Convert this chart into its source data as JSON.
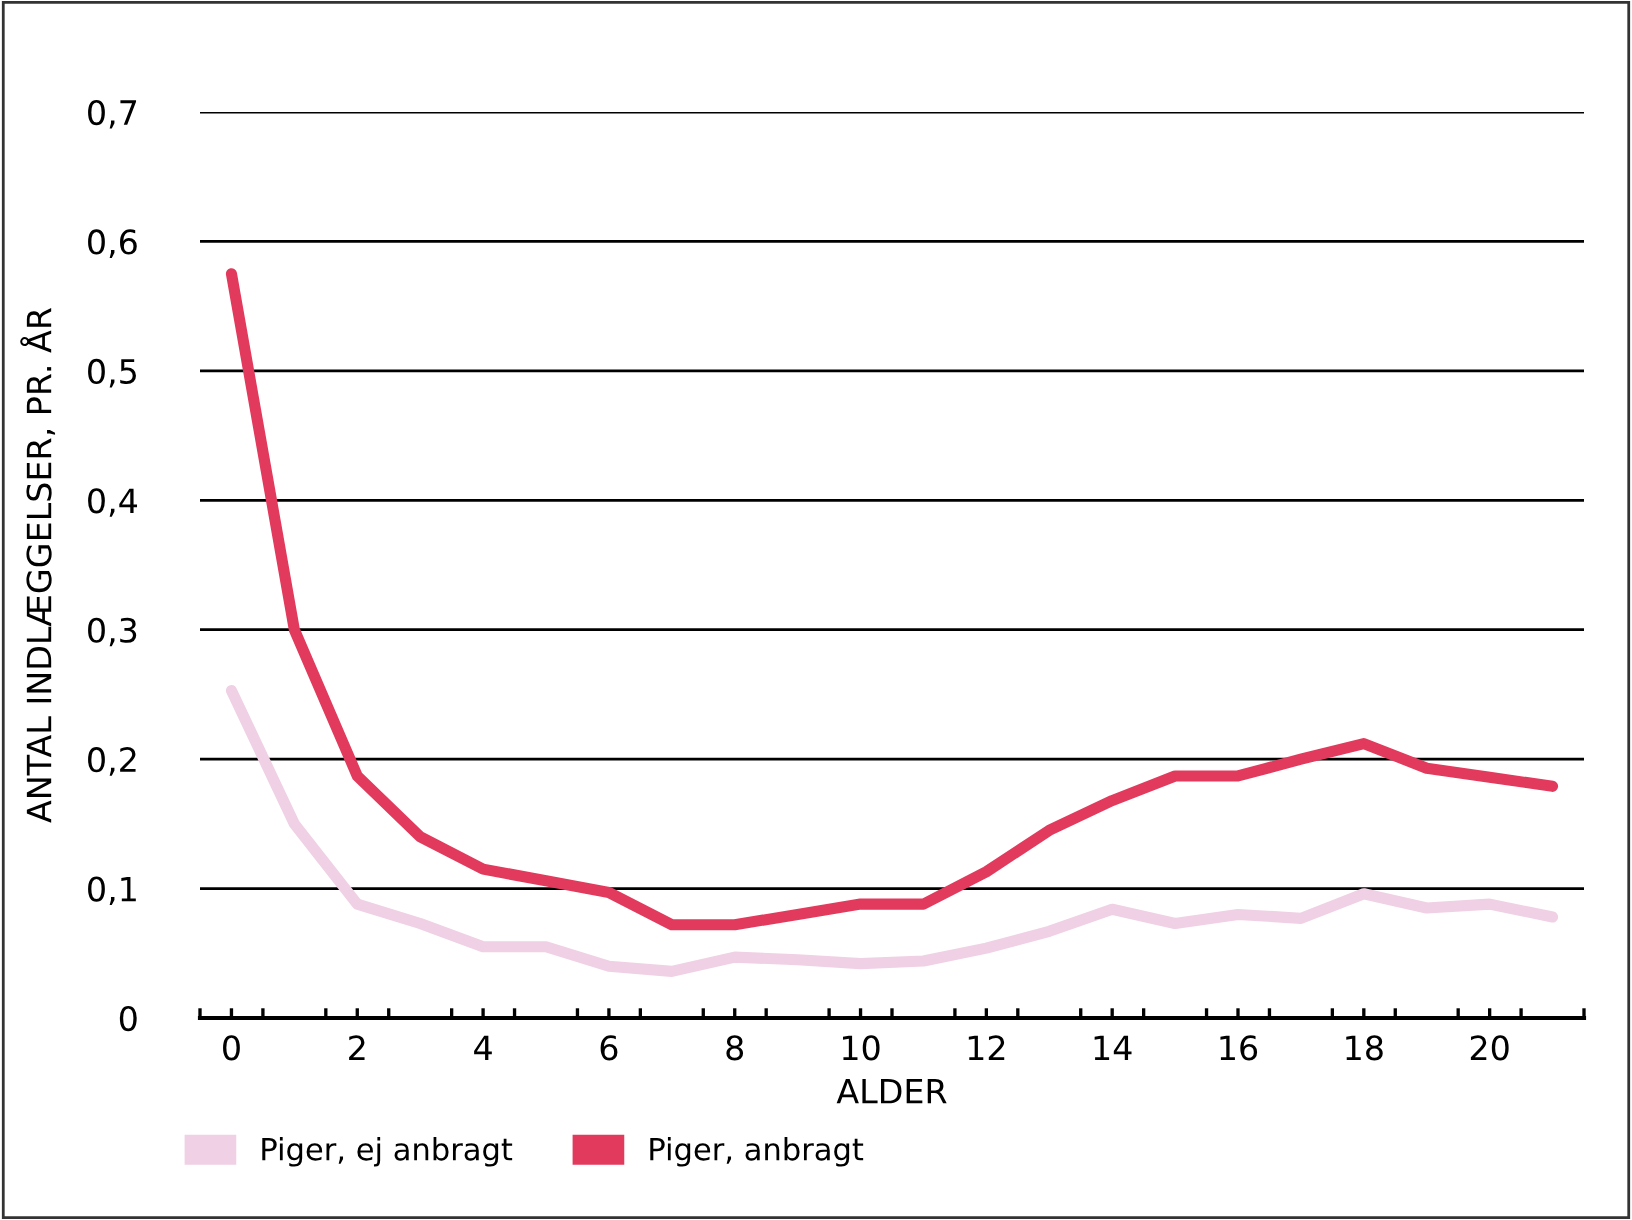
{
  "chart_data": {
    "type": "line",
    "xlabel": "ALDER",
    "ylabel": "ANTAL INDLÆGGELSER, PR. ÅR",
    "x": [
      0,
      1,
      2,
      3,
      4,
      5,
      6,
      7,
      8,
      9,
      10,
      11,
      12,
      13,
      14,
      15,
      16,
      17,
      18,
      19,
      20,
      21
    ],
    "series": [
      {
        "name": "Piger, ej anbragt",
        "color": "#f0d0e4",
        "values": [
          0.253,
          0.15,
          0.088,
          0.073,
          0.055,
          0.055,
          0.04,
          0.036,
          0.047,
          0.045,
          0.042,
          0.044,
          0.054,
          0.067,
          0.084,
          0.073,
          0.08,
          0.077,
          0.096,
          0.085,
          0.088,
          0.078
        ]
      },
      {
        "name": "Piger, anbragt",
        "color": "#e23a5c",
        "values": [
          0.575,
          0.3,
          0.187,
          0.14,
          0.115,
          0.106,
          0.097,
          0.072,
          0.072,
          0.08,
          0.088,
          0.088,
          0.113,
          0.145,
          0.168,
          0.187,
          0.187,
          0.2,
          0.212,
          0.193,
          0.186,
          0.179
        ]
      }
    ],
    "xlim": [
      -0.5,
      21.5
    ],
    "xticks": [
      0,
      2,
      4,
      6,
      8,
      10,
      12,
      14,
      16,
      18,
      20,
      {
        "value": -0.5,
        "label": null
      },
      {
        "value": 0.5,
        "label": null
      },
      {
        "value": 1.5,
        "label": null
      },
      {
        "value": 2.5,
        "label": null
      },
      {
        "value": 3.5,
        "label": null
      },
      {
        "value": 4.5,
        "label": null
      },
      {
        "value": 5.5,
        "label": null
      },
      {
        "value": 6.5,
        "label": null
      },
      {
        "value": 7.5,
        "label": null
      },
      {
        "value": 8.5,
        "label": null
      },
      {
        "value": 9.5,
        "label": null
      },
      {
        "value": 10.5,
        "label": null
      },
      {
        "value": 11.5,
        "label": null
      },
      {
        "value": 12.5,
        "label": null
      },
      {
        "value": 13.5,
        "label": null
      },
      {
        "value": 14.5,
        "label": null
      },
      {
        "value": 15.5,
        "label": null
      },
      {
        "value": 16.5,
        "label": null
      },
      {
        "value": 17.5,
        "label": null
      },
      {
        "value": 18.5,
        "label": null
      },
      {
        "value": 19.5,
        "label": null
      },
      {
        "value": 20.5,
        "label": null
      },
      {
        "value": 21.5,
        "label": null
      }
    ],
    "ylim": [
      0,
      0.7
    ],
    "yticks": [
      0,
      {
        "value": 0.1,
        "label": "0,1"
      },
      {
        "value": 0.2,
        "label": "0,2"
      },
      {
        "value": 0.3,
        "label": "0,3"
      },
      {
        "value": 0.4,
        "label": "0,4"
      },
      {
        "value": 0.5,
        "label": "0,5"
      },
      {
        "value": 0.6,
        "label": "0,6"
      },
      {
        "value": 0.7,
        "label": "0,7"
      }
    ],
    "grid": "y",
    "legend": "bottom left",
    "marker": "none",
    "line_style": "solid"
  }
}
